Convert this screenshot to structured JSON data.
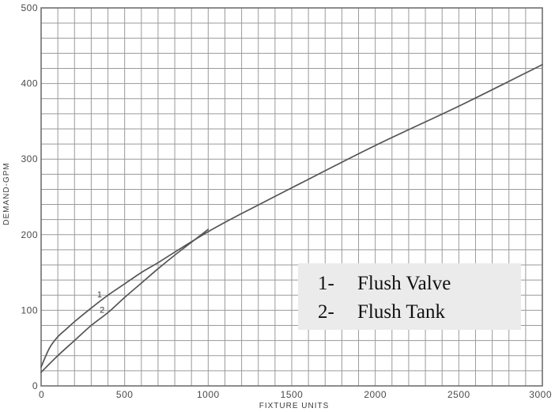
{
  "chart_data": {
    "type": "line",
    "xlabel": "FIXTURE UNITS",
    "ylabel": "DEMAND-GPM",
    "xlim": [
      0,
      3000
    ],
    "ylim": [
      0,
      500
    ],
    "x_ticks": [
      "0",
      "500",
      "1000",
      "1500",
      "2000",
      "2500",
      "3000"
    ],
    "y_ticks": [
      "0",
      "100",
      "200",
      "300",
      "400",
      "500"
    ],
    "grid": true,
    "series": [
      {
        "name": "Flush Valve",
        "curve_label": "1",
        "x": [
          0,
          50,
          100,
          150,
          200,
          300,
          400,
          500,
          600,
          700,
          800,
          1000,
          1200,
          1500,
          2000,
          2500,
          3000
        ],
        "y": [
          25,
          50,
          65,
          75,
          85,
          103,
          120,
          135,
          150,
          163,
          177,
          204,
          228,
          262,
          318,
          370,
          425
        ]
      },
      {
        "name": "Flush Tank",
        "curve_label": "2",
        "x": [
          0,
          100,
          200,
          300,
          400,
          500,
          600,
          700,
          800,
          900,
          1000
        ],
        "y": [
          18,
          40,
          60,
          80,
          97,
          117,
          136,
          155,
          173,
          190,
          207
        ]
      }
    ],
    "legend": {
      "placement": "bottom-right",
      "entries": [
        {
          "marker": "1-",
          "label": "Flush Valve"
        },
        {
          "marker": "2-",
          "label": "Flush Tank"
        }
      ]
    },
    "colors": {
      "grid": "#9a9a9a",
      "frame": "#6f6f6f",
      "line": "#555555",
      "legend_bg": "#ebebeb"
    }
  }
}
